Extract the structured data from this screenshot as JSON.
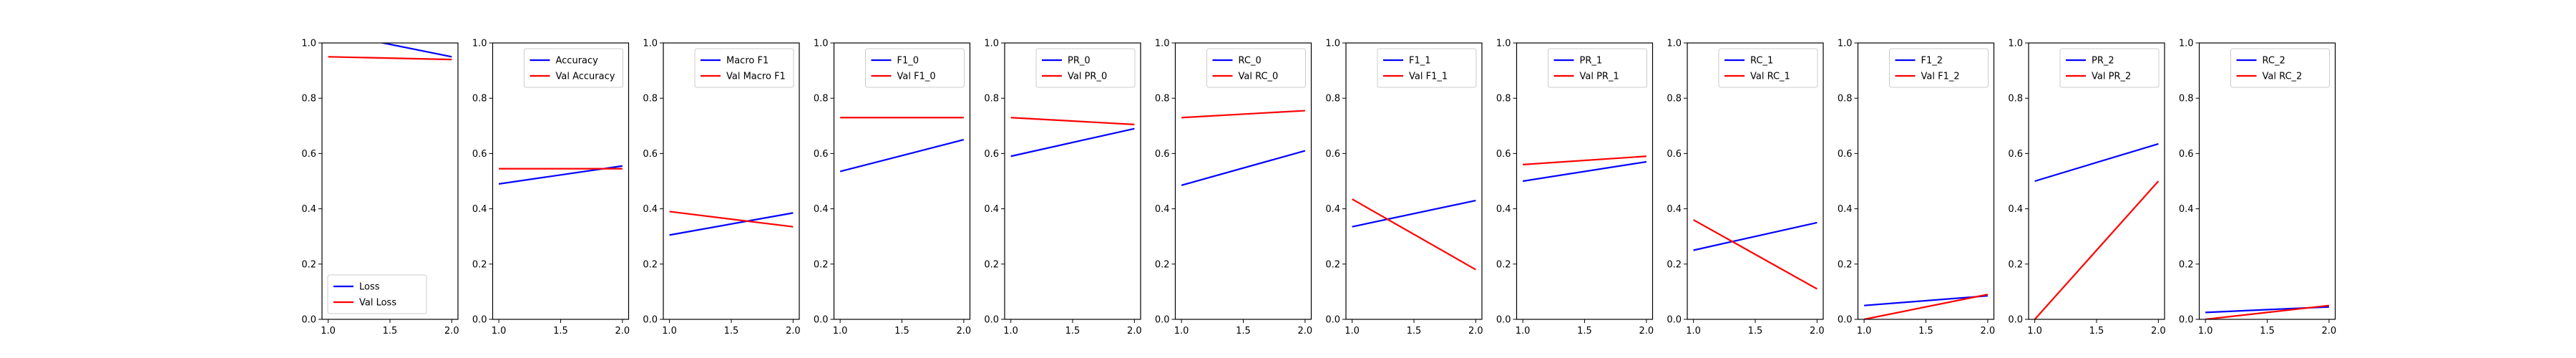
{
  "chart_data": [
    {
      "type": "line",
      "x": [
        1.0,
        2.0
      ],
      "xlim": [
        0.95,
        2.05
      ],
      "ylim": [
        0.0,
        1.0
      ],
      "xticks": [
        "1.0",
        "1.5",
        "2.0"
      ],
      "yticks": [
        "0.0",
        "0.2",
        "0.4",
        "0.6",
        "0.8",
        "1.0"
      ],
      "legend": "lower-left",
      "series": [
        {
          "name": "Loss",
          "color": "#0000ff",
          "values": [
            1.04,
            0.95
          ]
        },
        {
          "name": "Val Loss",
          "color": "#ff0000",
          "values": [
            0.95,
            0.94
          ]
        }
      ]
    },
    {
      "type": "line",
      "x": [
        1.0,
        2.0
      ],
      "xlim": [
        0.95,
        2.05
      ],
      "ylim": [
        0.0,
        1.0
      ],
      "xticks": [
        "1.0",
        "1.5",
        "2.0"
      ],
      "yticks": [
        "0.0",
        "0.2",
        "0.4",
        "0.6",
        "0.8",
        "1.0"
      ],
      "legend": "top-right",
      "series": [
        {
          "name": "Accuracy",
          "color": "#0000ff",
          "values": [
            0.49,
            0.555
          ]
        },
        {
          "name": "Val Accuracy",
          "color": "#ff0000",
          "values": [
            0.545,
            0.545
          ]
        }
      ]
    },
    {
      "type": "line",
      "x": [
        1.0,
        2.0
      ],
      "xlim": [
        0.95,
        2.05
      ],
      "ylim": [
        0.0,
        1.0
      ],
      "xticks": [
        "1.0",
        "1.5",
        "2.0"
      ],
      "yticks": [
        "0.0",
        "0.2",
        "0.4",
        "0.6",
        "0.8",
        "1.0"
      ],
      "legend": "top-right",
      "series": [
        {
          "name": "Macro F1",
          "color": "#0000ff",
          "values": [
            0.305,
            0.385
          ]
        },
        {
          "name": "Val Macro F1",
          "color": "#ff0000",
          "values": [
            0.39,
            0.335
          ]
        }
      ]
    },
    {
      "type": "line",
      "x": [
        1.0,
        2.0
      ],
      "xlim": [
        0.95,
        2.05
      ],
      "ylim": [
        0.0,
        1.0
      ],
      "xticks": [
        "1.0",
        "1.5",
        "2.0"
      ],
      "yticks": [
        "0.0",
        "0.2",
        "0.4",
        "0.6",
        "0.8",
        "1.0"
      ],
      "legend": "top-right",
      "series": [
        {
          "name": "F1_0",
          "color": "#0000ff",
          "values": [
            0.535,
            0.65
          ]
        },
        {
          "name": "Val F1_0",
          "color": "#ff0000",
          "values": [
            0.73,
            0.73
          ]
        }
      ]
    },
    {
      "type": "line",
      "x": [
        1.0,
        2.0
      ],
      "xlim": [
        0.95,
        2.05
      ],
      "ylim": [
        0.0,
        1.0
      ],
      "xticks": [
        "1.0",
        "1.5",
        "2.0"
      ],
      "yticks": [
        "0.0",
        "0.2",
        "0.4",
        "0.6",
        "0.8",
        "1.0"
      ],
      "legend": "top-right",
      "series": [
        {
          "name": "PR_0",
          "color": "#0000ff",
          "values": [
            0.59,
            0.69
          ]
        },
        {
          "name": "Val PR_0",
          "color": "#ff0000",
          "values": [
            0.73,
            0.705
          ]
        }
      ]
    },
    {
      "type": "line",
      "x": [
        1.0,
        2.0
      ],
      "xlim": [
        0.95,
        2.05
      ],
      "ylim": [
        0.0,
        1.0
      ],
      "xticks": [
        "1.0",
        "1.5",
        "2.0"
      ],
      "yticks": [
        "0.0",
        "0.2",
        "0.4",
        "0.6",
        "0.8",
        "1.0"
      ],
      "legend": "top-right",
      "series": [
        {
          "name": "RC_0",
          "color": "#0000ff",
          "values": [
            0.485,
            0.61
          ]
        },
        {
          "name": "Val RC_0",
          "color": "#ff0000",
          "values": [
            0.73,
            0.755
          ]
        }
      ]
    },
    {
      "type": "line",
      "x": [
        1.0,
        2.0
      ],
      "xlim": [
        0.95,
        2.05
      ],
      "ylim": [
        0.0,
        1.0
      ],
      "xticks": [
        "1.0",
        "1.5",
        "2.0"
      ],
      "yticks": [
        "0.0",
        "0.2",
        "0.4",
        "0.6",
        "0.8",
        "1.0"
      ],
      "legend": "top-right",
      "series": [
        {
          "name": "F1_1",
          "color": "#0000ff",
          "values": [
            0.335,
            0.43
          ]
        },
        {
          "name": "Val F1_1",
          "color": "#ff0000",
          "values": [
            0.435,
            0.18
          ]
        }
      ]
    },
    {
      "type": "line",
      "x": [
        1.0,
        2.0
      ],
      "xlim": [
        0.95,
        2.05
      ],
      "ylim": [
        0.0,
        1.0
      ],
      "xticks": [
        "1.0",
        "1.5",
        "2.0"
      ],
      "yticks": [
        "0.0",
        "0.2",
        "0.4",
        "0.6",
        "0.8",
        "1.0"
      ],
      "legend": "top-right",
      "series": [
        {
          "name": "PR_1",
          "color": "#0000ff",
          "values": [
            0.5,
            0.57
          ]
        },
        {
          "name": "Val PR_1",
          "color": "#ff0000",
          "values": [
            0.56,
            0.59
          ]
        }
      ]
    },
    {
      "type": "line",
      "x": [
        1.0,
        2.0
      ],
      "xlim": [
        0.95,
        2.05
      ],
      "ylim": [
        0.0,
        1.0
      ],
      "xticks": [
        "1.0",
        "1.5",
        "2.0"
      ],
      "yticks": [
        "0.0",
        "0.2",
        "0.4",
        "0.6",
        "0.8",
        "1.0"
      ],
      "legend": "top-right",
      "series": [
        {
          "name": "RC_1",
          "color": "#0000ff",
          "values": [
            0.25,
            0.35
          ]
        },
        {
          "name": "Val RC_1",
          "color": "#ff0000",
          "values": [
            0.36,
            0.11
          ]
        }
      ]
    },
    {
      "type": "line",
      "x": [
        1.0,
        2.0
      ],
      "xlim": [
        0.95,
        2.05
      ],
      "ylim": [
        0.0,
        1.0
      ],
      "xticks": [
        "1.0",
        "1.5",
        "2.0"
      ],
      "yticks": [
        "0.0",
        "0.2",
        "0.4",
        "0.6",
        "0.8",
        "1.0"
      ],
      "legend": "top-right",
      "series": [
        {
          "name": "F1_2",
          "color": "#0000ff",
          "values": [
            0.05,
            0.085
          ]
        },
        {
          "name": "Val F1_2",
          "color": "#ff0000",
          "values": [
            0.0,
            0.09
          ]
        }
      ]
    },
    {
      "type": "line",
      "x": [
        1.0,
        2.0
      ],
      "xlim": [
        0.95,
        2.05
      ],
      "ylim": [
        0.0,
        1.0
      ],
      "xticks": [
        "1.0",
        "1.5",
        "2.0"
      ],
      "yticks": [
        "0.0",
        "0.2",
        "0.4",
        "0.6",
        "0.8",
        "1.0"
      ],
      "legend": "top-right",
      "series": [
        {
          "name": "PR_2",
          "color": "#0000ff",
          "values": [
            0.5,
            0.635
          ]
        },
        {
          "name": "Val PR_2",
          "color": "#ff0000",
          "values": [
            0.0,
            0.5
          ]
        }
      ]
    },
    {
      "type": "line",
      "x": [
        1.0,
        2.0
      ],
      "xlim": [
        0.95,
        2.05
      ],
      "ylim": [
        0.0,
        1.0
      ],
      "xticks": [
        "1.0",
        "1.5",
        "2.0"
      ],
      "yticks": [
        "0.0",
        "0.2",
        "0.4",
        "0.6",
        "0.8",
        "1.0"
      ],
      "legend": "top-right",
      "series": [
        {
          "name": "RC_2",
          "color": "#0000ff",
          "values": [
            0.025,
            0.045
          ]
        },
        {
          "name": "Val RC_2",
          "color": "#ff0000",
          "values": [
            0.0,
            0.05
          ]
        }
      ]
    }
  ]
}
